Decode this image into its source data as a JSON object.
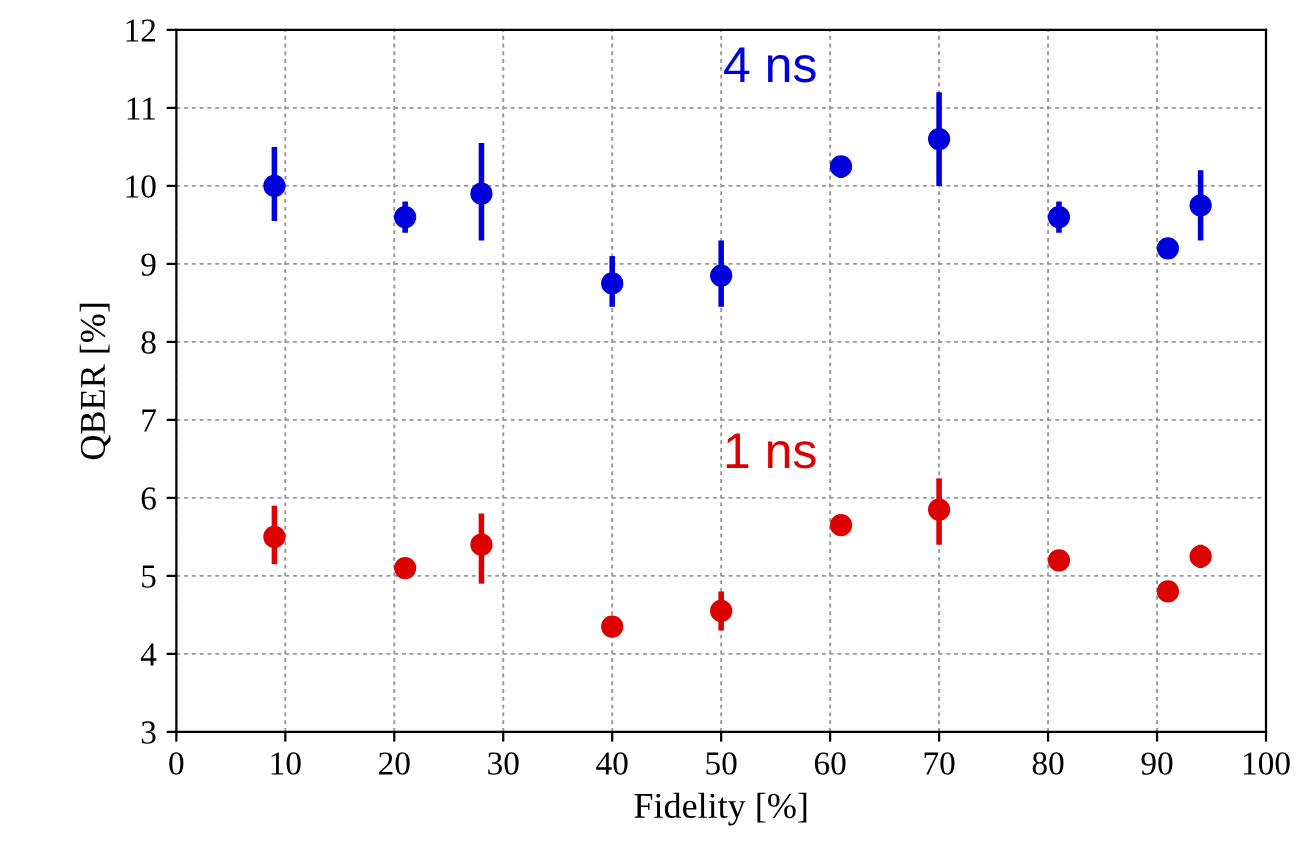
{
  "chart_data": {
    "type": "scatter",
    "xlabel": "Fidelity [%]",
    "ylabel": "QBER [%]",
    "x": [
      9,
      21,
      28,
      40,
      50,
      61,
      70,
      81,
      91,
      94
    ],
    "series": [
      {
        "name": "4 ns",
        "color": "#0000dd",
        "values": [
          10.0,
          9.6,
          9.9,
          8.75,
          8.85,
          10.25,
          10.6,
          9.6,
          9.2,
          9.75
        ],
        "errors": [
          [
            9.55,
            10.5
          ],
          [
            9.4,
            9.8
          ],
          [
            9.3,
            10.55
          ],
          [
            8.45,
            9.1
          ],
          [
            8.45,
            9.3
          ],
          [
            10.1,
            10.35
          ],
          [
            10.0,
            11.2
          ],
          [
            9.4,
            9.8
          ],
          null,
          [
            9.3,
            10.2
          ]
        ]
      },
      {
        "name": "1 ns",
        "color": "#dd0000",
        "values": [
          5.5,
          5.1,
          5.4,
          4.35,
          4.55,
          5.65,
          5.85,
          5.2,
          4.8,
          5.25
        ],
        "errors": [
          [
            5.15,
            5.9
          ],
          null,
          [
            4.9,
            5.8
          ],
          null,
          [
            4.3,
            4.8
          ],
          null,
          [
            5.4,
            6.25
          ],
          null,
          null,
          [
            5.1,
            5.4
          ]
        ]
      }
    ],
    "xlim": [
      0,
      100
    ],
    "xticks": [
      0,
      10,
      20,
      30,
      40,
      50,
      60,
      70,
      80,
      90,
      100
    ],
    "ylim": [
      3,
      12
    ],
    "yticks": [
      3,
      4,
      5,
      6,
      7,
      8,
      9,
      10,
      11,
      12
    ],
    "grid": true,
    "marker": "circle",
    "legend": false
  }
}
